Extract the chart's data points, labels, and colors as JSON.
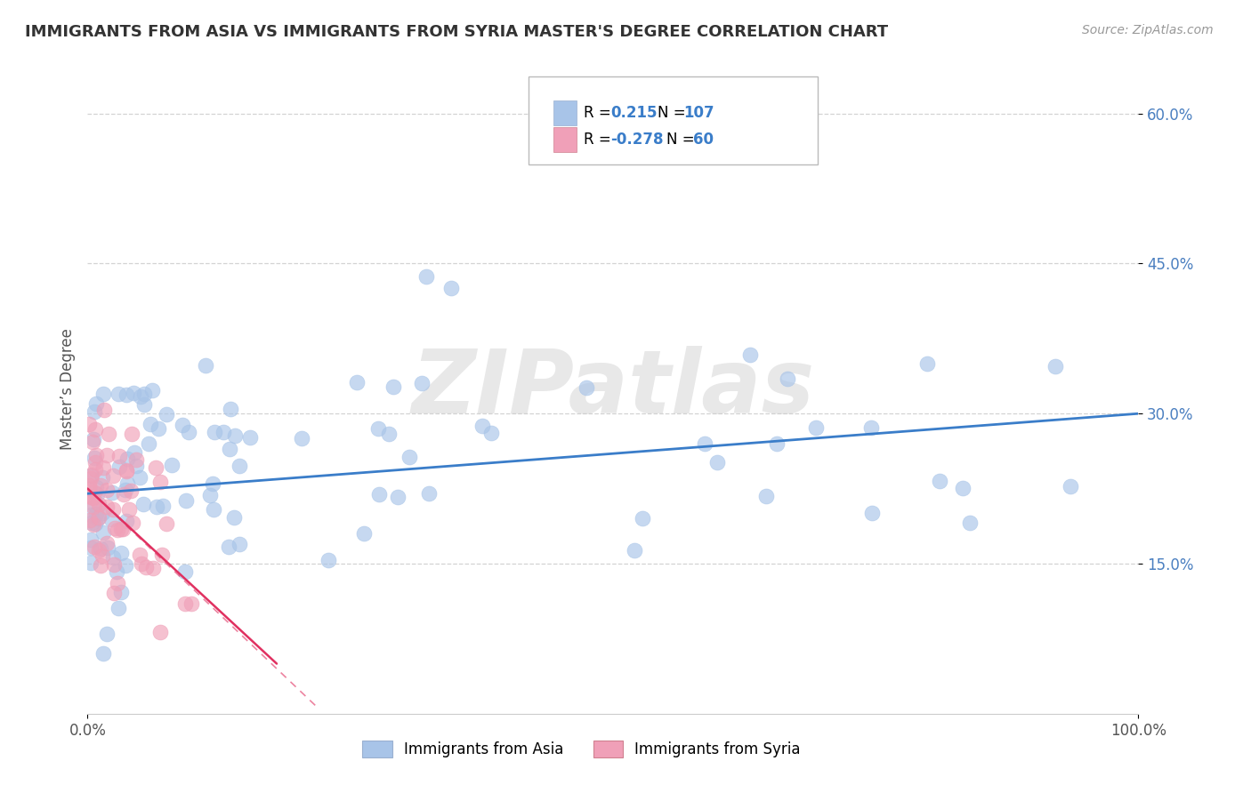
{
  "title": "IMMIGRANTS FROM ASIA VS IMMIGRANTS FROM SYRIA MASTER'S DEGREE CORRELATION CHART",
  "source_text": "Source: ZipAtlas.com",
  "ylabel": "Master’s Degree",
  "xlim": [
    0.0,
    100.0
  ],
  "ylim": [
    0.0,
    65.0
  ],
  "xtick_positions": [
    0,
    100
  ],
  "xtick_labels": [
    "0.0%",
    "100.0%"
  ],
  "ytick_values": [
    15.0,
    30.0,
    45.0,
    60.0
  ],
  "ytick_labels": [
    "15.0%",
    "30.0%",
    "45.0%",
    "60.0%"
  ],
  "legend_R_asia": "0.215",
  "legend_N_asia": "107",
  "legend_R_syria": "-0.278",
  "legend_N_syria": "60",
  "color_asia": "#a8c4e8",
  "color_syria": "#f0a0b8",
  "color_trendline_asia": "#3a7dc9",
  "color_trendline_syria": "#e03060",
  "watermark_text": "ZIPatlas",
  "background_color": "#ffffff",
  "grid_color": "#c8c8c8",
  "title_color": "#333333",
  "trendline_asia_x0": 0.0,
  "trendline_asia_y0": 22.0,
  "trendline_asia_x1": 100.0,
  "trendline_asia_y1": 30.0,
  "trendline_syria_x0": 0.0,
  "trendline_syria_y0": 22.5,
  "trendline_syria_x1": 18.0,
  "trendline_syria_y1": 5.0,
  "trendline_syria_dash_x0": 0.0,
  "trendline_syria_dash_y0": 22.5,
  "trendline_syria_dash_x1": 22.0,
  "trendline_syria_dash_y1": 0.5
}
